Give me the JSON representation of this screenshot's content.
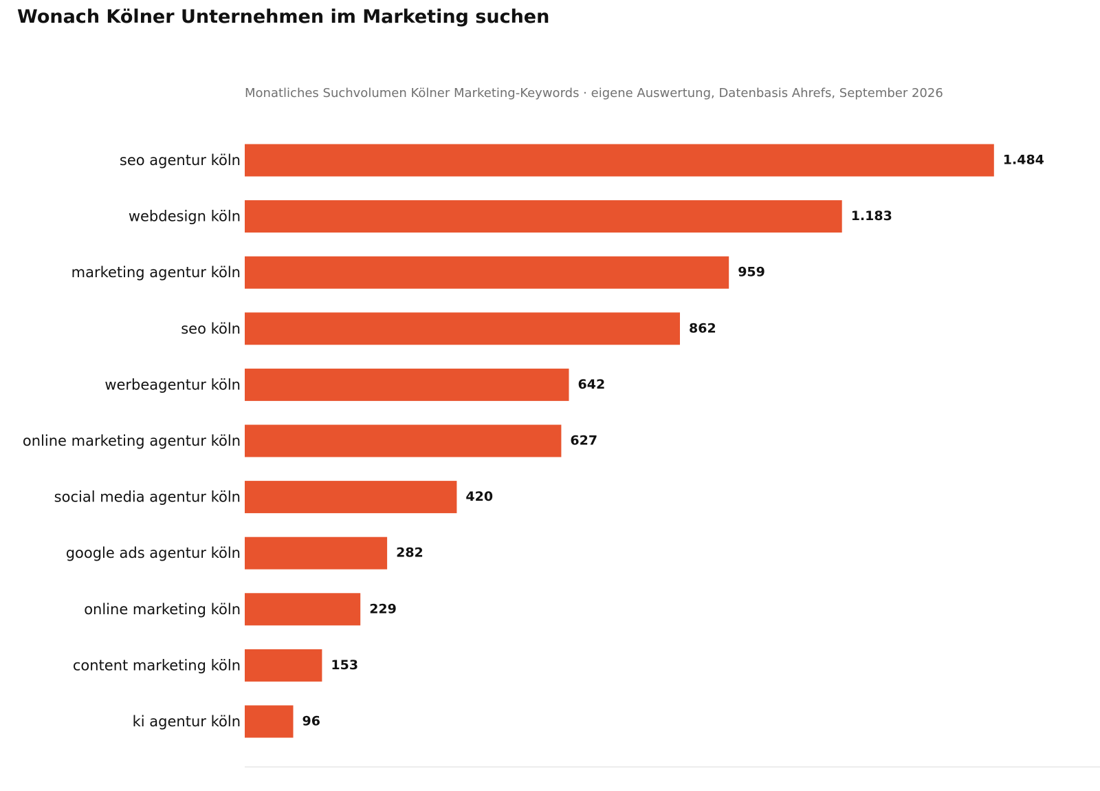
{
  "header": {
    "title": "Wonach Kölner Unternehmen im Marketing suchen",
    "subtitle": "Monatliches Suchvolumen Kölner Marketing-Keywords · eigene Auswertung, Datenbasis Ahrefs, September 2026"
  },
  "colors": {
    "bar": "#e8542e",
    "axis_line": "#e6e6e6",
    "text": "#111111",
    "subtitle": "#707070"
  },
  "chart_data": {
    "type": "bar",
    "orientation": "horizontal",
    "title": "Wonach Kölner Unternehmen im Marketing suchen",
    "subtitle": "Monatliches Suchvolumen Kölner Marketing-Keywords · eigene Auswertung, Datenbasis Ahrefs, September 2026",
    "xlabel": "",
    "ylabel": "",
    "categories": [
      "seo agentur köln",
      "webdesign köln",
      "marketing agentur köln",
      "seo köln",
      "werbeagentur köln",
      "online marketing agentur köln",
      "social media agentur köln",
      "google ads agentur köln",
      "online marketing köln",
      "content marketing köln",
      "ki agentur köln"
    ],
    "values": [
      1484,
      1183,
      959,
      862,
      642,
      627,
      420,
      282,
      229,
      153,
      96
    ],
    "value_labels": [
      "1.484",
      "1.183",
      "959",
      "862",
      "642",
      "627",
      "420",
      "282",
      "229",
      "153",
      "96"
    ],
    "xlim": [
      0,
      1694
    ],
    "grid": false,
    "legend": "none"
  }
}
